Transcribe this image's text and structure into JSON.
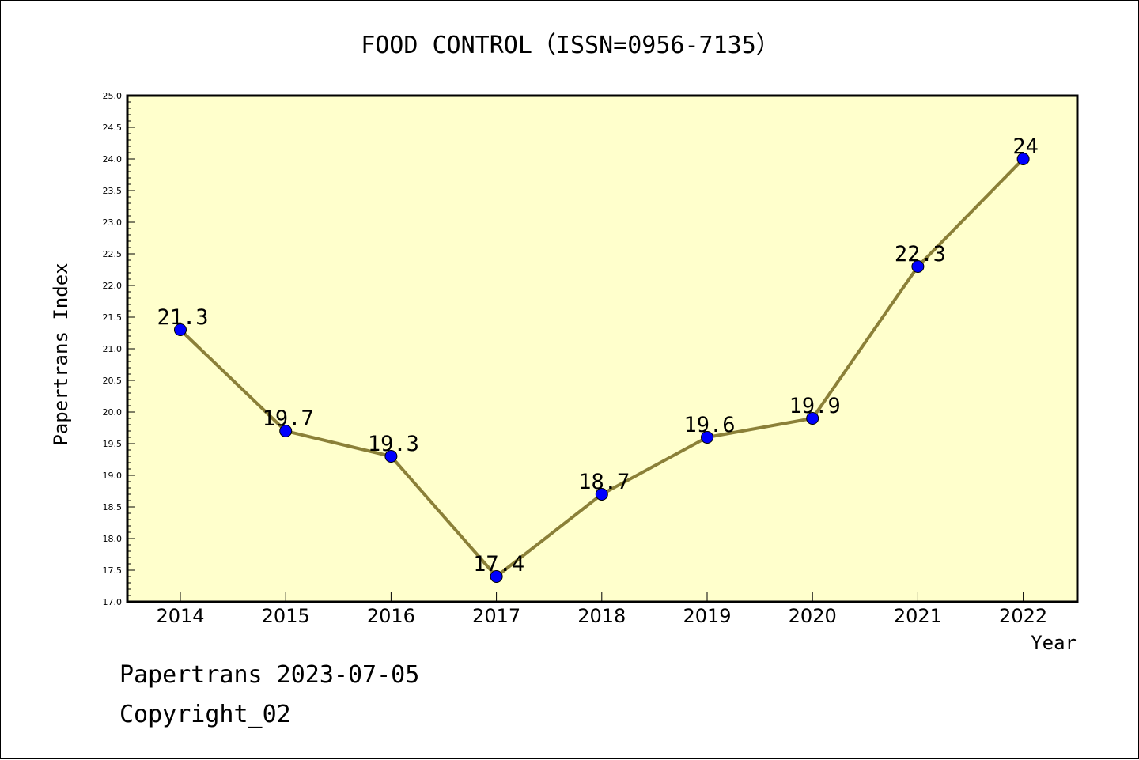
{
  "chart_data": {
    "type": "line",
    "title": "FOOD CONTROL（ISSN=0956-7135）",
    "xlabel": "Year",
    "ylabel": "Papertrans Index",
    "categories": [
      "2014",
      "2015",
      "2016",
      "2017",
      "2018",
      "2019",
      "2020",
      "2021",
      "2022"
    ],
    "values": [
      21.3,
      19.7,
      19.3,
      17.4,
      18.7,
      19.6,
      19.9,
      22.3,
      24
    ],
    "data_labels": [
      "21.3",
      "19.7",
      "19.3",
      "17.4",
      "18.7",
      "19.6",
      "19.9",
      "22.3",
      "24"
    ],
    "ylim": [
      17.0,
      25.0
    ],
    "yticks": [
      "17.0",
      "17.5",
      "18.0",
      "18.5",
      "19.0",
      "19.5",
      "20.0",
      "20.5",
      "21.0",
      "21.5",
      "22.0",
      "22.5",
      "23.0",
      "23.5",
      "24.0",
      "24.5",
      "25.0"
    ],
    "grid": false,
    "colors": {
      "plot_background": "#ffffcc",
      "line": "#8b8038",
      "marker": "#0000ff"
    }
  },
  "footer": {
    "date_line": "Papertrans 2023-07-05",
    "copyright": "Copyright_02"
  }
}
